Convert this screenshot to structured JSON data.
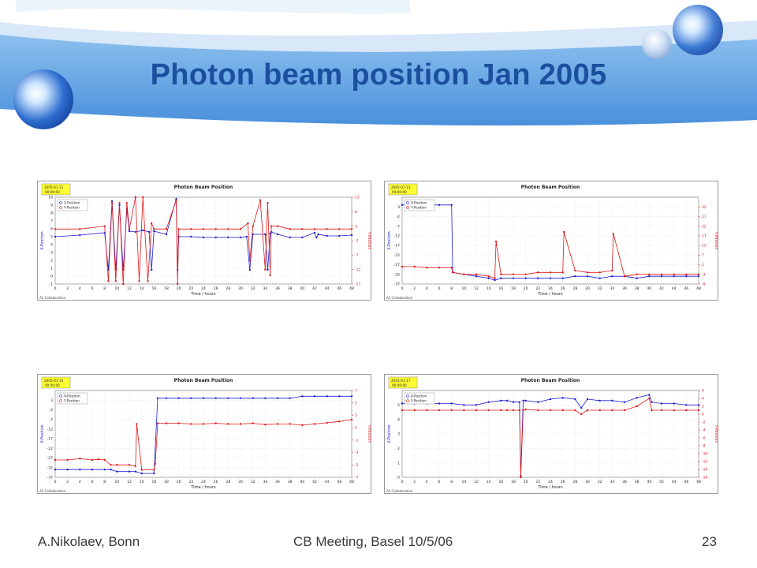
{
  "slide": {
    "title": "Photon beam position Jan 2005",
    "footer_left": "A.Nikolaev, Bonn",
    "footer_center": "CB Meeting, Basel 10/5/06",
    "page_number": "23",
    "colors": {
      "title": "#1c4f9e",
      "banner": "#3d85d6",
      "x_series": "#1f1fd0",
      "y_series": "#e01818"
    }
  },
  "chart_data": [
    {
      "type": "line",
      "title": "Photon Beam Position",
      "date_label": "2005-01-11",
      "time_label": "00:00:00",
      "xlabel": "Time / hours",
      "ylabel_left": "X-Position",
      "ylabel_right": "Y-Position",
      "footer": "A2 Collaboration",
      "xlim": [
        0,
        48
      ],
      "x_ticks": [
        0,
        2,
        4,
        6,
        8,
        10,
        12,
        14,
        16,
        18,
        20,
        22,
        24,
        26,
        28,
        30,
        32,
        34,
        36,
        38,
        40,
        42,
        44,
        46,
        48
      ],
      "ylim_left": [
        -1,
        10
      ],
      "y_ticks_left": [
        -1,
        0,
        1,
        2,
        3,
        4,
        5,
        6,
        7,
        8,
        9,
        10
      ],
      "ylim_right": [
        -17,
        13
      ],
      "y_ticks_right": [
        -17,
        -12,
        -7,
        -2,
        3,
        8,
        13
      ],
      "legend": [
        "X-Position",
        "Y-Position"
      ],
      "series": [
        {
          "name": "X-Position",
          "axis": "left",
          "color": "#1f1fd0",
          "x": [
            0,
            4,
            8,
            8.6,
            9.2,
            9.8,
            10.4,
            11,
            11.6,
            12,
            13,
            14.2,
            15.2,
            15.6,
            16,
            18,
            19.6,
            19.8,
            20,
            22,
            24,
            26,
            28,
            30,
            31,
            31.5,
            32,
            34,
            34.4,
            34.8,
            35,
            36,
            38,
            40,
            42,
            42.3,
            42.6,
            44,
            46,
            48
          ],
          "y": [
            5,
            5.2,
            5.5,
            0.8,
            9.5,
            0.8,
            9,
            0.8,
            8.5,
            5.7,
            5.6,
            5.8,
            5.6,
            0.8,
            5.7,
            5.3,
            9.8,
            0.8,
            5,
            5,
            4.9,
            4.9,
            4.9,
            4.9,
            5,
            0.8,
            5.3,
            5.3,
            0.8,
            5.4,
            5.6,
            5.3,
            4.9,
            4.9,
            5.5,
            4.9,
            5.3,
            5.1,
            5.1,
            5.2
          ]
        },
        {
          "name": "Y-Position",
          "axis": "right",
          "color": "#e01818",
          "x": [
            0,
            4,
            8,
            8.6,
            9.2,
            9.8,
            10.4,
            11,
            11.6,
            12,
            13,
            13.6,
            14.2,
            15,
            15.6,
            16,
            18,
            19.6,
            19.8,
            20,
            22,
            24,
            26,
            28,
            30,
            31.2,
            31.5,
            32,
            33.2,
            34,
            34.4,
            34.8,
            35,
            36,
            38,
            40,
            42,
            44,
            46,
            48
          ],
          "y": [
            2,
            2,
            3,
            -16,
            11,
            -16,
            11,
            -17,
            11,
            2,
            13,
            -16,
            13,
            -16,
            4,
            2,
            2,
            12,
            -17,
            2,
            2,
            2,
            2,
            2,
            2,
            4,
            -9,
            3,
            12,
            -12,
            11,
            -14,
            3,
            3,
            2,
            2,
            2,
            2,
            2,
            2
          ]
        }
      ]
    },
    {
      "type": "line",
      "title": "Photon Beam Position",
      "date_label": "2005-01-13",
      "time_label": "00:00:00",
      "xlabel": "Time / hours",
      "ylabel_left": "X-Position",
      "ylabel_right": "Y-Position",
      "footer": "A2 Collaboration",
      "xlim": [
        0,
        48
      ],
      "x_ticks": [
        0,
        2,
        4,
        6,
        8,
        10,
        12,
        14,
        16,
        18,
        20,
        22,
        24,
        26,
        28,
        30,
        32,
        34,
        36,
        38,
        40,
        42,
        44,
        46,
        48
      ],
      "ylim_left": [
        -37,
        8
      ],
      "y_ticks_left": [
        -37,
        -32,
        -27,
        -22,
        -17,
        -12,
        -7,
        -2,
        3
      ],
      "ylim_right": [
        -8,
        37
      ],
      "y_ticks_right": [
        -8,
        -3,
        2,
        7,
        12,
        17,
        22,
        27,
        32
      ],
      "legend": [
        "X-Position",
        "Y-Position"
      ],
      "series": [
        {
          "name": "X-Position",
          "axis": "left",
          "color": "#1f1fd0",
          "x": [
            0,
            2,
            4,
            6,
            8,
            8.2,
            10,
            12,
            14,
            15,
            16,
            18,
            20,
            22,
            24,
            26,
            28,
            30,
            32,
            34,
            36,
            38,
            40,
            42,
            44,
            46,
            48
          ],
          "y": [
            4,
            4,
            4,
            4,
            4,
            -31,
            -32,
            -33,
            -34,
            -35,
            -34,
            -34,
            -34,
            -34,
            -34,
            -34,
            -33,
            -33,
            -34,
            -33,
            -33,
            -34,
            -33,
            -33,
            -33,
            -33,
            -33
          ]
        },
        {
          "name": "Y-Position",
          "axis": "right",
          "color": "#e01818",
          "x": [
            0,
            2,
            4,
            6,
            8,
            8.2,
            10,
            12,
            14,
            15,
            15.2,
            16,
            18,
            20,
            22,
            24,
            26,
            26.2,
            28,
            30,
            32,
            34,
            34.2,
            36,
            38,
            40,
            42,
            44,
            46,
            48
          ],
          "y": [
            1,
            1,
            0.5,
            0.5,
            0.5,
            -2,
            -3,
            -3,
            -4,
            -5,
            14,
            -3,
            -3,
            -3,
            -2,
            -2,
            -2,
            19,
            -1,
            -2,
            -2,
            -1,
            18,
            -4,
            -3,
            -3,
            -3,
            -3,
            -3,
            -3
          ]
        }
      ]
    },
    {
      "type": "line",
      "title": "Photon Beam Position",
      "date_label": "2005-01-15",
      "time_label": "00:00:00",
      "xlabel": "Time / hours",
      "ylabel_left": "X-Position",
      "ylabel_right": "Y-Position",
      "footer": "A2 Collaboration",
      "xlim": [
        0,
        48
      ],
      "x_ticks": [
        0,
        2,
        4,
        6,
        8,
        10,
        12,
        14,
        16,
        18,
        20,
        22,
        24,
        26,
        28,
        30,
        32,
        34,
        36,
        38,
        40,
        42,
        44,
        46,
        48
      ],
      "ylim_left": [
        -37,
        8
      ],
      "y_ticks_left": [
        -37,
        -32,
        -27,
        -22,
        -17,
        -12,
        -7,
        -2,
        3
      ],
      "ylim_right": [
        -7,
        7
      ],
      "y_ticks_right": [
        -7,
        -5,
        -3,
        -1,
        1,
        3,
        5,
        7
      ],
      "legend": [
        "X-Position",
        "Y-Position"
      ],
      "series": [
        {
          "name": "X-Position",
          "axis": "left",
          "color": "#1f1fd0",
          "x": [
            0,
            2,
            4,
            6,
            8,
            9,
            10,
            12,
            13,
            14,
            16,
            16.6,
            18,
            20,
            22,
            24,
            26,
            28,
            30,
            32,
            34,
            36,
            38,
            40,
            42,
            44,
            46,
            48
          ],
          "y": [
            -33,
            -33,
            -33,
            -33,
            -33,
            -33,
            -34,
            -34,
            -34,
            -35,
            -35,
            4,
            4,
            4,
            4,
            4,
            4,
            4,
            4,
            4,
            4,
            4,
            4,
            5,
            5,
            5,
            5,
            5
          ]
        },
        {
          "name": "Y-Position",
          "axis": "right",
          "color": "#e01818",
          "x": [
            0,
            2,
            4,
            6,
            7,
            8,
            9,
            10,
            12,
            13,
            13.2,
            14,
            16,
            16.2,
            16.6,
            18,
            20,
            22,
            24,
            26,
            28,
            30,
            32,
            34,
            36,
            38,
            40,
            42,
            44,
            46,
            48
          ],
          "y": [
            -4.2,
            -4.2,
            -4,
            -4.2,
            -4.1,
            -4.2,
            -5,
            -5,
            -5,
            -5.2,
            1.6,
            -5.8,
            -5.8,
            -4.8,
            1.7,
            1.7,
            1.7,
            1.6,
            1.6,
            1.7,
            1.6,
            1.6,
            1.7,
            1.5,
            1.6,
            1.6,
            1.4,
            1.6,
            1.8,
            2,
            2.3
          ]
        }
      ]
    },
    {
      "type": "line",
      "title": "Photon Beam Position",
      "date_label": "2005-01-17",
      "time_label": "00:00:00",
      "xlabel": "Time / hours",
      "ylabel_left": "X-Position",
      "ylabel_right": "Y-Position",
      "footer": "A2 Collaboration",
      "xlim": [
        0,
        48
      ],
      "x_ticks": [
        0,
        2,
        4,
        6,
        8,
        10,
        12,
        14,
        16,
        18,
        20,
        22,
        24,
        26,
        28,
        30,
        32,
        34,
        36,
        38,
        40,
        42,
        44,
        46,
        48
      ],
      "ylim_left": [
        0,
        6
      ],
      "y_ticks_left": [
        0,
        1,
        2,
        3,
        4,
        5
      ],
      "ylim_right": [
        -16,
        6
      ],
      "y_ticks_right": [
        -16,
        -14,
        -12,
        -10,
        -8,
        -6,
        -4,
        -2,
        0,
        2,
        4,
        6
      ],
      "legend": [
        "X-Position",
        "Y-Position"
      ],
      "series": [
        {
          "name": "X-Position",
          "axis": "left",
          "color": "#1f1fd0",
          "x": [
            0,
            2,
            4,
            6,
            8,
            10,
            12,
            14,
            16,
            17,
            18,
            19,
            19.2,
            19.6,
            20,
            22,
            24,
            26,
            28,
            29,
            30,
            32,
            34,
            36,
            38,
            40,
            40.4,
            42,
            44,
            46,
            48
          ],
          "y": [
            5.1,
            5.1,
            5.1,
            5.1,
            5.1,
            5,
            5,
            5.2,
            5.3,
            5.3,
            5.2,
            5.2,
            0.1,
            5.3,
            5.3,
            5.2,
            5.4,
            5.5,
            5.4,
            4.8,
            5.4,
            5.3,
            5.3,
            5.2,
            5.5,
            5.7,
            5.2,
            5.1,
            5.1,
            5,
            5
          ]
        },
        {
          "name": "Y-Position",
          "axis": "right",
          "color": "#e01818",
          "x": [
            0,
            2,
            4,
            6,
            8,
            10,
            12,
            14,
            16,
            17,
            18,
            19,
            19.2,
            19.6,
            20,
            22,
            24,
            26,
            28,
            29,
            30,
            32,
            34,
            36,
            38,
            40,
            40.4,
            42,
            44,
            46,
            48
          ],
          "y": [
            1,
            1,
            1,
            1,
            1,
            1,
            1,
            1,
            1,
            1,
            1,
            1,
            -16,
            1,
            1.2,
            1,
            1,
            1,
            1,
            0,
            1,
            1,
            1,
            1,
            2,
            4,
            1,
            1,
            1,
            1,
            1
          ]
        }
      ]
    }
  ]
}
